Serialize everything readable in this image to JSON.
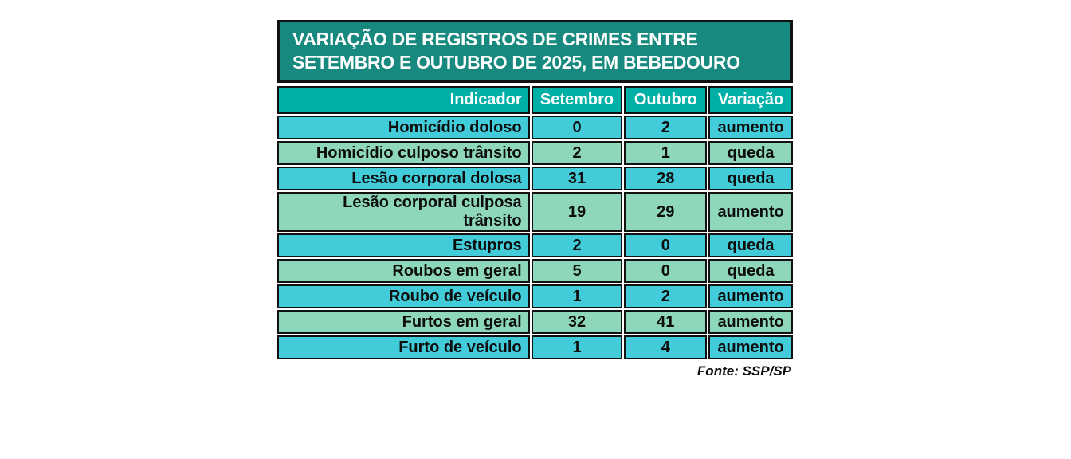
{
  "infographic": {
    "title_line1": "VARIAÇÃO DE REGISTROS DE CRIMES ENTRE",
    "title_line2": "SETEMBRO E OUTUBRO DE 2025, EM BEBEDOURO",
    "source": "Fonte: SSP/SP",
    "colors": {
      "title_bg": "#17897e",
      "header_bg": "#00b0a7",
      "row_cyan": "#42ccd9",
      "row_green": "#8ed7ba",
      "border": "#111111",
      "title_text": "#ffffff",
      "cell_text": "#0d0d0d"
    }
  },
  "table": {
    "headers": [
      "Indicador",
      "Setembro",
      "Outubro",
      "Variação"
    ],
    "rows": [
      [
        "Homicídio doloso",
        "0",
        "2",
        "aumento"
      ],
      [
        "Homicídio culposo trânsito",
        "2",
        "1",
        "queda"
      ],
      [
        "Lesão corporal dolosa",
        "31",
        "28",
        "queda"
      ],
      [
        "Lesão corporal culposa trânsito",
        "19",
        "29",
        "aumento"
      ],
      [
        "Estupros",
        "2",
        "0",
        "queda"
      ],
      [
        "Roubos em geral",
        "5",
        "0",
        "queda"
      ],
      [
        "Roubo de veículo",
        "1",
        "2",
        "aumento"
      ],
      [
        "Furtos em geral",
        "32",
        "41",
        "aumento"
      ],
      [
        "Furto de veículo",
        "1",
        "4",
        "aumento"
      ]
    ]
  },
  "chart_data": {
    "type": "table",
    "title": "VARIAÇÃO DE REGISTROS DE CRIMES ENTRE SETEMBRO E OUTUBRO DE 2025, EM BEBEDOURO",
    "columns": [
      "Indicador",
      "Setembro",
      "Outubro",
      "Variação"
    ],
    "categories": [
      "Homicídio doloso",
      "Homicídio culposo trânsito",
      "Lesão corporal dolosa",
      "Lesão corporal culposa trânsito",
      "Estupros",
      "Roubos em geral",
      "Roubo de veículo",
      "Furtos em geral",
      "Furto de veículo"
    ],
    "series": [
      {
        "name": "Setembro",
        "values": [
          0,
          2,
          31,
          19,
          2,
          5,
          1,
          32,
          1
        ]
      },
      {
        "name": "Outubro",
        "values": [
          2,
          1,
          28,
          29,
          0,
          0,
          2,
          41,
          4
        ]
      },
      {
        "name": "Variação",
        "values": [
          "aumento",
          "queda",
          "queda",
          "aumento",
          "queda",
          "queda",
          "aumento",
          "aumento",
          "aumento"
        ]
      }
    ],
    "source": "Fonte: SSP/SP"
  }
}
